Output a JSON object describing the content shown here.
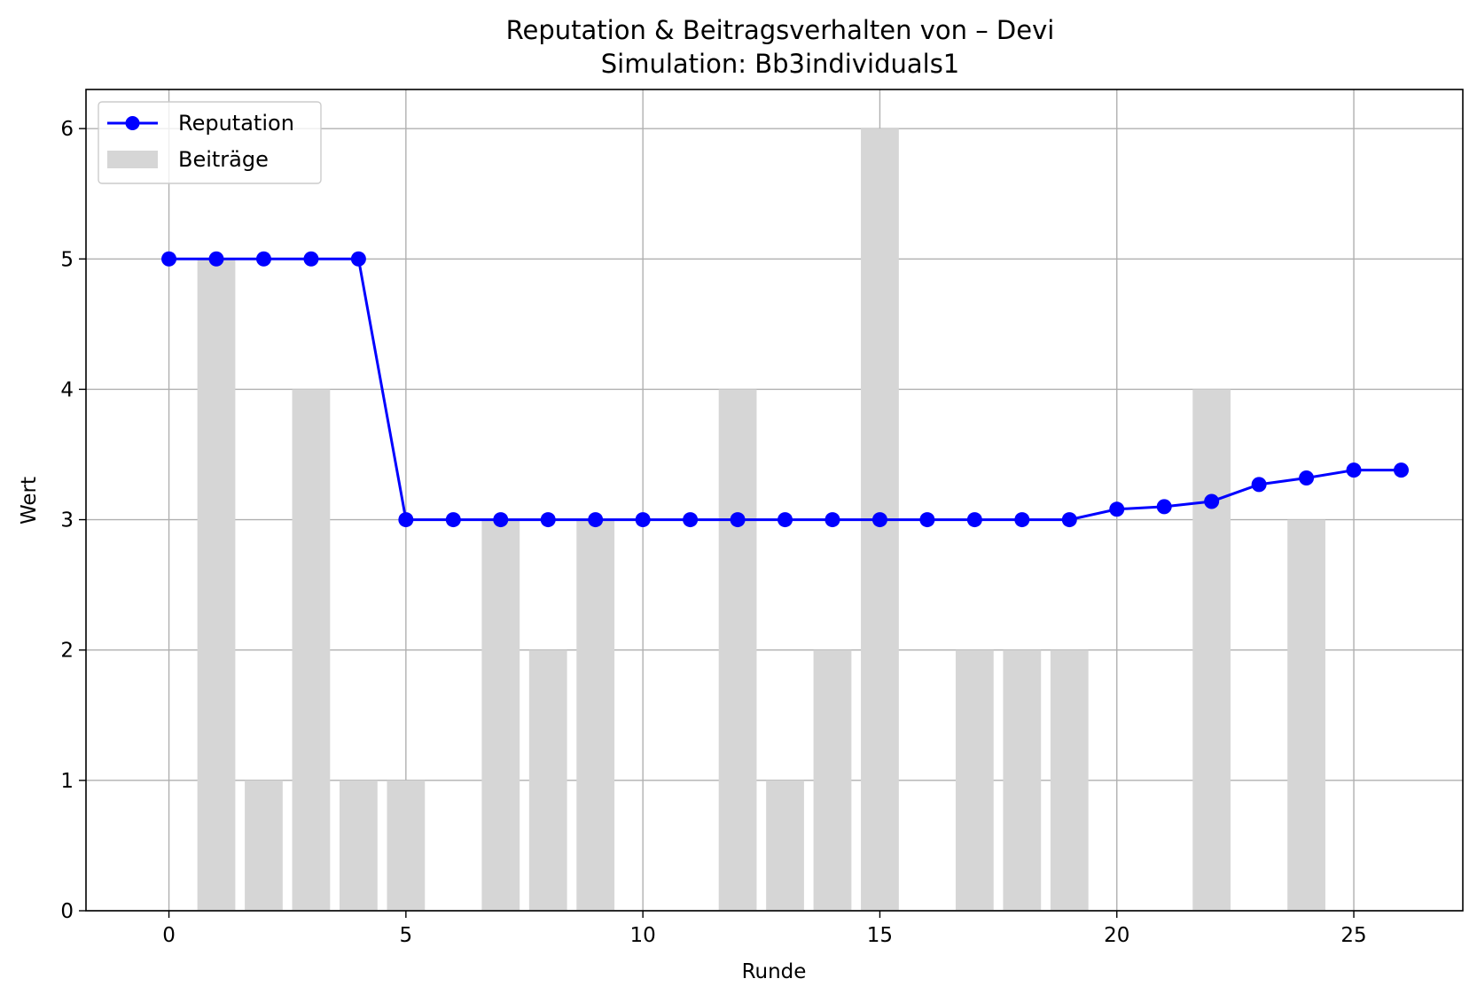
{
  "chart_data": {
    "type": "bar",
    "title": "Reputation & Beitragsverhalten von – Devi",
    "subtitle": "Simulation: Bb3individuals1",
    "xlabel": "Runde",
    "ylabel": "Wert",
    "xlim": [
      -1.75,
      27.3
    ],
    "ylim": [
      0,
      6.3
    ],
    "xticks": [
      0,
      5,
      10,
      15,
      20,
      25
    ],
    "yticks": [
      0,
      1,
      2,
      3,
      4,
      5,
      6
    ],
    "grid": true,
    "legend_position": "top-left",
    "series": [
      {
        "name": "Reputation",
        "kind": "line",
        "marker": "circle",
        "color": "#0000ff",
        "x": [
          0,
          1,
          2,
          3,
          4,
          5,
          6,
          7,
          8,
          9,
          10,
          11,
          12,
          13,
          14,
          15,
          16,
          17,
          18,
          19,
          20,
          21,
          22,
          23,
          24,
          25,
          26
        ],
        "values": [
          5,
          5,
          5,
          5,
          5,
          3,
          3,
          3,
          3,
          3,
          3,
          3,
          3,
          3,
          3,
          3,
          3,
          3,
          3,
          3,
          3.08,
          3.1,
          3.14,
          3.27,
          3.32,
          3.38,
          3.38
        ]
      },
      {
        "name": "Beiträge",
        "kind": "bar",
        "color": "#d6d6d6",
        "x": [
          1,
          2,
          3,
          4,
          5,
          6,
          7,
          8,
          9,
          10,
          11,
          12,
          13,
          14,
          15,
          16,
          17,
          18,
          19,
          20,
          21,
          22,
          23,
          24
        ],
        "values": [
          5,
          1,
          4,
          1,
          1,
          0,
          3,
          2,
          3,
          0,
          0,
          4,
          1,
          2,
          6,
          0,
          2,
          2,
          2,
          0,
          0,
          4,
          0,
          3
        ]
      }
    ]
  }
}
